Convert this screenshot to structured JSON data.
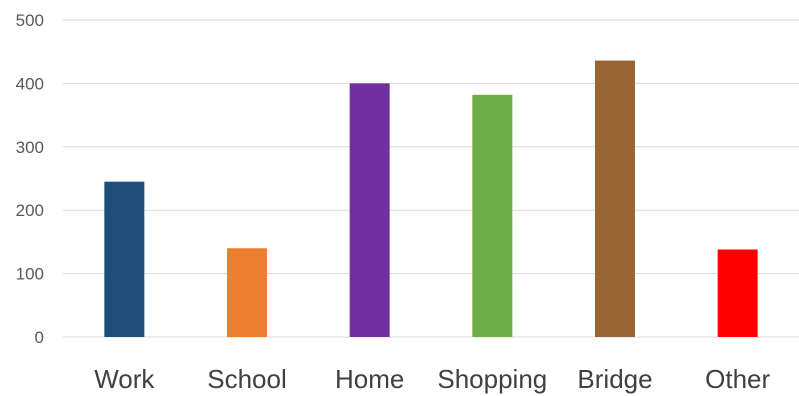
{
  "chart_data": {
    "type": "bar",
    "title": "",
    "xlabel": "",
    "ylabel": "",
    "categories": [
      "Work",
      "School",
      "Home",
      "Shopping",
      "Bridge",
      "Other"
    ],
    "values": [
      245,
      140,
      400,
      382,
      436,
      138
    ],
    "colors": [
      "#1f4e79",
      "#ed7d31",
      "#7030a0",
      "#70ad47",
      "#996633",
      "#ff0000"
    ],
    "ylim": [
      0,
      500
    ],
    "yticks": [
      0,
      100,
      200,
      300,
      400,
      500
    ],
    "grid": true,
    "legend": "none"
  }
}
